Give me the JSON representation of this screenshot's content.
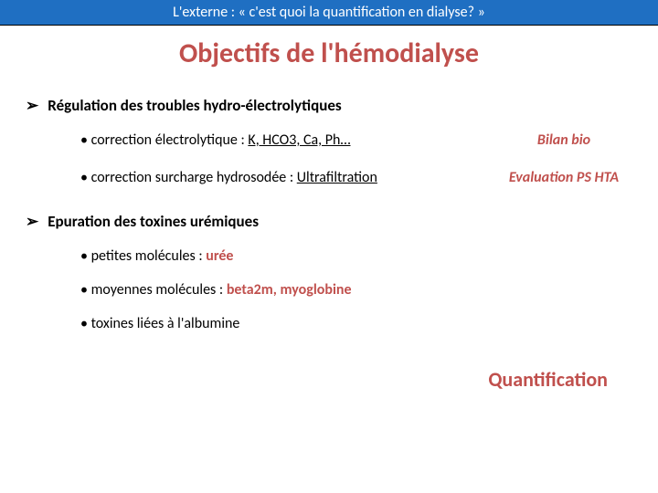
{
  "header": "L'externe : « c'est quoi la quantification en dialyse? »",
  "title": "Objectifs de l'hémodialyse",
  "section1": {
    "heading": "Régulation des troubles hydro-électrolytiques",
    "items": [
      {
        "prefix": "• correction électrolytique : ",
        "suffix": "K, HCO3, Ca, Ph…",
        "annot": "Bilan bio"
      },
      {
        "prefix": "• correction surcharge hydrosodée : ",
        "suffix": "Ultrafiltration",
        "annot": "Evaluation PS HTA"
      }
    ]
  },
  "section2": {
    "heading": "Epuration des toxines urémiques",
    "items": [
      {
        "prefix": "• petites molécules  : ",
        "highlight": "urée",
        "suffix": ""
      },
      {
        "prefix": "• moyennes molécules : ",
        "highlight": "beta2m, myoglobine",
        "suffix": ""
      },
      {
        "prefix": "• toxines liées à l'albumine",
        "highlight": "",
        "suffix": ""
      }
    ],
    "annot": "Quantification"
  }
}
